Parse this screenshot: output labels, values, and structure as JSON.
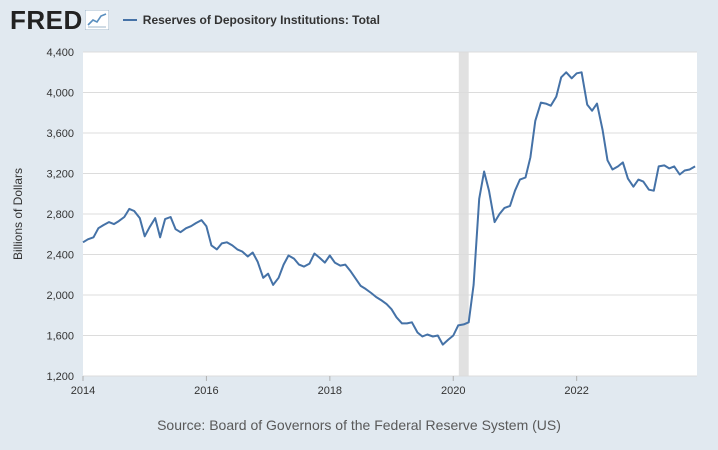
{
  "header": {
    "logo_text": "FRED",
    "logo_icon": "chart-line-icon"
  },
  "colors": {
    "page_bg": "#e1e9f0",
    "plot_bg": "#ffffff",
    "series": "#4572a7",
    "recession": "#e1e1e1",
    "grid": "#dcdcdc",
    "text": "#333333"
  },
  "chart_data": {
    "type": "line",
    "title": "Reserves of Depository Institutions: Total",
    "xlabel": "",
    "ylabel": "Billions of Dollars",
    "xlim": [
      2014.0,
      2023.95
    ],
    "ylim": [
      1200,
      4400
    ],
    "y_ticks": [
      1200,
      1600,
      2000,
      2400,
      2800,
      3200,
      3600,
      4000,
      4400
    ],
    "y_tick_labels": [
      "1,200",
      "1,600",
      "2,000",
      "2,400",
      "2,800",
      "3,200",
      "3,600",
      "4,000",
      "4,400"
    ],
    "x_ticks": [
      2014,
      2016,
      2018,
      2020,
      2022
    ],
    "x_tick_labels": [
      "2014",
      "2016",
      "2018",
      "2020",
      "2022"
    ],
    "recession": [
      2020.09,
      2020.25
    ],
    "series": [
      {
        "name": "Reserves of Depository Institutions: Total",
        "x": [
          2014.0,
          2014.08,
          2014.17,
          2014.25,
          2014.33,
          2014.42,
          2014.5,
          2014.58,
          2014.67,
          2014.75,
          2014.83,
          2014.92,
          2015.0,
          2015.08,
          2015.17,
          2015.25,
          2015.33,
          2015.42,
          2015.5,
          2015.58,
          2015.67,
          2015.75,
          2015.83,
          2015.92,
          2016.0,
          2016.08,
          2016.17,
          2016.25,
          2016.33,
          2016.42,
          2016.5,
          2016.58,
          2016.67,
          2016.75,
          2016.83,
          2016.92,
          2017.0,
          2017.08,
          2017.17,
          2017.25,
          2017.33,
          2017.42,
          2017.5,
          2017.58,
          2017.67,
          2017.75,
          2017.83,
          2017.92,
          2018.0,
          2018.08,
          2018.17,
          2018.25,
          2018.33,
          2018.42,
          2018.5,
          2018.58,
          2018.67,
          2018.75,
          2018.83,
          2018.92,
          2019.0,
          2019.08,
          2019.17,
          2019.25,
          2019.33,
          2019.42,
          2019.5,
          2019.58,
          2019.67,
          2019.75,
          2019.83,
          2019.92,
          2020.0,
          2020.08,
          2020.17,
          2020.25,
          2020.33,
          2020.42,
          2020.5,
          2020.58,
          2020.67,
          2020.75,
          2020.83,
          2020.92,
          2021.0,
          2021.08,
          2021.17,
          2021.25,
          2021.33,
          2021.42,
          2021.5,
          2021.58,
          2021.67,
          2021.75,
          2021.83,
          2021.92,
          2022.0,
          2022.08,
          2022.17,
          2022.25,
          2022.33,
          2022.42,
          2022.5,
          2022.58,
          2022.67,
          2022.75,
          2022.83,
          2022.92,
          2023.0,
          2023.08,
          2023.17,
          2023.25,
          2023.33,
          2023.42,
          2023.5,
          2023.58,
          2023.67,
          2023.75,
          2023.83,
          2023.92
        ],
        "y": [
          2520,
          2550,
          2570,
          2660,
          2690,
          2720,
          2700,
          2730,
          2770,
          2850,
          2830,
          2760,
          2580,
          2670,
          2760,
          2570,
          2750,
          2770,
          2650,
          2620,
          2660,
          2680,
          2710,
          2740,
          2680,
          2490,
          2450,
          2510,
          2520,
          2490,
          2450,
          2430,
          2380,
          2420,
          2330,
          2170,
          2210,
          2100,
          2170,
          2300,
          2390,
          2360,
          2300,
          2280,
          2310,
          2410,
          2370,
          2320,
          2390,
          2320,
          2290,
          2300,
          2240,
          2160,
          2090,
          2060,
          2020,
          1980,
          1950,
          1910,
          1860,
          1780,
          1720,
          1720,
          1730,
          1630,
          1590,
          1610,
          1590,
          1600,
          1510,
          1560,
          1600,
          1700,
          1710,
          1730,
          2100,
          2950,
          3220,
          3030,
          2720,
          2800,
          2860,
          2880,
          3030,
          3140,
          3160,
          3360,
          3720,
          3900,
          3890,
          3870,
          3960,
          4150,
          4200,
          4140,
          4190,
          4200,
          3880,
          3820,
          3890,
          3630,
          3330,
          3240,
          3270,
          3310,
          3150,
          3070,
          3140,
          3120,
          3040,
          3030,
          3270,
          3280,
          3250,
          3270,
          3190,
          3230,
          3240,
          3270
        ]
      }
    ]
  },
  "footer": {
    "source": "Source: Board of Governors of the Federal Reserve System (US)"
  }
}
